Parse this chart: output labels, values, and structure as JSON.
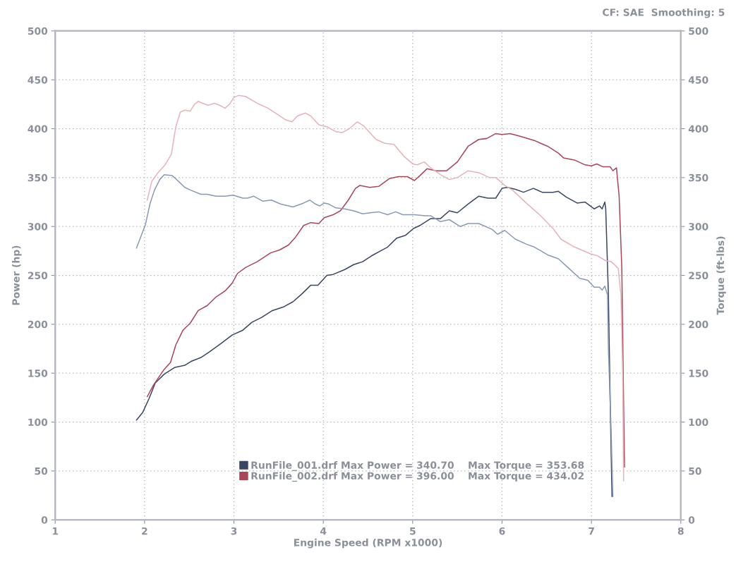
{
  "chart_data": {
    "type": "line",
    "xlabel": "Engine Speed (RPM x1000)",
    "ylabel": "Power (hp)",
    "y2label": "Torque (ft-lbs)",
    "annotations": [
      "CF: SAE  Smoothing: 5"
    ],
    "xlim": [
      1,
      8
    ],
    "xticks": [
      1,
      2,
      3,
      4,
      5,
      6,
      7,
      8
    ],
    "ylim": [
      0,
      500
    ],
    "yticks": [
      0,
      50,
      100,
      150,
      200,
      250,
      300,
      350,
      400,
      450,
      500
    ],
    "y2lim": [
      0,
      500
    ],
    "y2ticks": [
      0,
      50,
      100,
      150,
      200,
      250,
      300,
      350,
      400,
      450,
      500
    ],
    "grid": true,
    "legend": "bottom right",
    "line_style": "solid",
    "series": [
      {
        "name": "RunFile_001.drf Max Power = 340.70    Max Torque = 353.68",
        "color": "#3a4663",
        "x": [
          1.91,
          1.98,
          2.05,
          2.12,
          2.22,
          2.34,
          2.45,
          2.52,
          2.63,
          2.73,
          2.85,
          2.98,
          3.1,
          3.2,
          3.31,
          3.43,
          3.56,
          3.66,
          3.76,
          3.86,
          3.94,
          4.04,
          4.11,
          4.24,
          4.34,
          4.44,
          4.54,
          4.64,
          4.72,
          4.82,
          4.92,
          5.01,
          5.08,
          5.2,
          5.31,
          5.41,
          5.5,
          5.62,
          5.74,
          5.84,
          5.93,
          6.0,
          6.06,
          6.15,
          6.24,
          6.35,
          6.45,
          6.57,
          6.63,
          6.72,
          6.84,
          6.93,
          7.03,
          7.09,
          7.12,
          7.15,
          7.16,
          7.19,
          7.21,
          7.23
        ],
        "values": [
          102,
          110,
          124,
          140,
          149,
          156,
          158,
          162,
          166,
          172,
          180,
          189,
          194,
          202,
          207,
          214,
          218,
          223,
          231,
          240,
          240,
          250,
          251,
          256,
          261,
          264,
          270,
          275,
          279,
          288,
          291,
          298,
          301,
          308,
          308,
          316,
          314,
          323,
          331,
          329,
          329,
          339,
          340,
          338,
          335,
          339,
          335,
          335,
          336,
          330,
          324,
          325,
          318,
          321,
          318,
          325,
          318,
          230,
          120,
          24
        ]
      },
      {
        "color": "#8a9ab5",
        "axis": "y2",
        "x": [
          1.91,
          1.96,
          2.01,
          2.06,
          2.11,
          2.17,
          2.22,
          2.31,
          2.37,
          2.45,
          2.52,
          2.63,
          2.7,
          2.8,
          2.9,
          2.99,
          3.1,
          3.15,
          3.22,
          3.32,
          3.42,
          3.52,
          3.66,
          3.78,
          3.85,
          3.91,
          3.96,
          4.01,
          4.06,
          4.14,
          4.24,
          4.34,
          4.44,
          4.52,
          4.62,
          4.72,
          4.81,
          4.89,
          5.02,
          5.14,
          5.2,
          5.31,
          5.41,
          5.53,
          5.62,
          5.74,
          5.89,
          5.95,
          6.03,
          6.15,
          6.27,
          6.36,
          6.51,
          6.63,
          6.75,
          6.87,
          6.96,
          7.03,
          7.09,
          7.12,
          7.15,
          7.18,
          7.19,
          7.22,
          7.24
        ],
        "values": [
          278,
          290,
          302,
          323,
          337,
          348,
          353,
          352,
          347,
          340,
          337,
          333,
          333,
          331,
          331,
          332,
          329,
          329,
          331,
          326,
          327,
          323,
          320,
          324,
          327,
          323,
          321,
          324,
          323,
          319,
          318,
          316,
          313,
          314,
          315,
          312,
          315,
          312,
          312,
          311,
          311,
          305,
          307,
          300,
          303,
          303,
          297,
          292,
          296,
          287,
          282,
          279,
          271,
          267,
          257,
          247,
          245,
          238,
          238,
          235,
          239,
          230,
          175,
          92,
          24
        ]
      },
      {
        "name": "RunFile_002.drf Max Power = 396.00    Max Torque = 434.02",
        "color": "#a8475a",
        "x": [
          2.03,
          2.1,
          2.22,
          2.29,
          2.35,
          2.43,
          2.51,
          2.6,
          2.7,
          2.8,
          2.9,
          2.98,
          3.04,
          3.13,
          3.26,
          3.41,
          3.51,
          3.61,
          3.68,
          3.78,
          3.86,
          3.95,
          4.01,
          4.11,
          4.19,
          4.28,
          4.36,
          4.41,
          4.52,
          4.62,
          4.74,
          4.84,
          4.94,
          5.02,
          5.08,
          5.16,
          5.26,
          5.38,
          5.5,
          5.62,
          5.74,
          5.83,
          5.93,
          6.0,
          6.09,
          6.21,
          6.36,
          6.51,
          6.63,
          6.69,
          6.81,
          6.93,
          7.0,
          7.06,
          7.13,
          7.21,
          7.24,
          7.28,
          7.31,
          7.34,
          7.36,
          7.37
        ],
        "values": [
          126,
          138,
          154,
          161,
          179,
          194,
          201,
          214,
          219,
          228,
          234,
          242,
          252,
          258,
          264,
          273,
          276,
          281,
          288,
          301,
          304,
          303,
          309,
          312,
          316,
          327,
          339,
          342,
          340,
          341,
          349,
          351,
          351,
          347,
          352,
          359,
          357,
          357,
          366,
          382,
          389,
          390,
          395,
          394,
          395,
          392,
          388,
          382,
          375,
          370,
          368,
          363,
          362,
          364,
          361,
          361,
          357,
          360,
          331,
          257,
          120,
          54
        ]
      },
      {
        "color": "#e6b3bb",
        "axis": "y2",
        "x": [
          2.03,
          2.08,
          2.15,
          2.23,
          2.3,
          2.35,
          2.4,
          2.45,
          2.51,
          2.56,
          2.6,
          2.65,
          2.71,
          2.78,
          2.84,
          2.9,
          2.95,
          3.0,
          3.05,
          3.13,
          3.26,
          3.38,
          3.48,
          3.58,
          3.65,
          3.71,
          3.8,
          3.86,
          3.95,
          4.04,
          4.14,
          4.21,
          4.29,
          4.38,
          4.45,
          4.52,
          4.59,
          4.69,
          4.79,
          4.9,
          5.0,
          5.05,
          5.13,
          5.2,
          5.31,
          5.41,
          5.5,
          5.62,
          5.74,
          5.86,
          5.93,
          6.03,
          6.12,
          6.27,
          6.42,
          6.57,
          6.66,
          6.81,
          6.99,
          7.07,
          7.16,
          7.22,
          7.27,
          7.3,
          7.33,
          7.35,
          7.36
        ],
        "values": [
          327,
          346,
          355,
          363,
          374,
          402,
          417,
          419,
          418,
          425,
          428,
          426,
          424,
          426,
          424,
          421,
          425,
          432,
          434,
          433,
          426,
          421,
          415,
          409,
          407,
          413,
          416,
          413,
          404,
          402,
          397,
          396,
          400,
          407,
          403,
          396,
          389,
          385,
          384,
          372,
          364,
          363,
          366,
          360,
          353,
          348,
          350,
          357,
          355,
          350,
          350,
          342,
          337,
          324,
          312,
          298,
          287,
          279,
          272,
          270,
          265,
          264,
          260,
          257,
          230,
          147,
          40
        ]
      }
    ]
  }
}
